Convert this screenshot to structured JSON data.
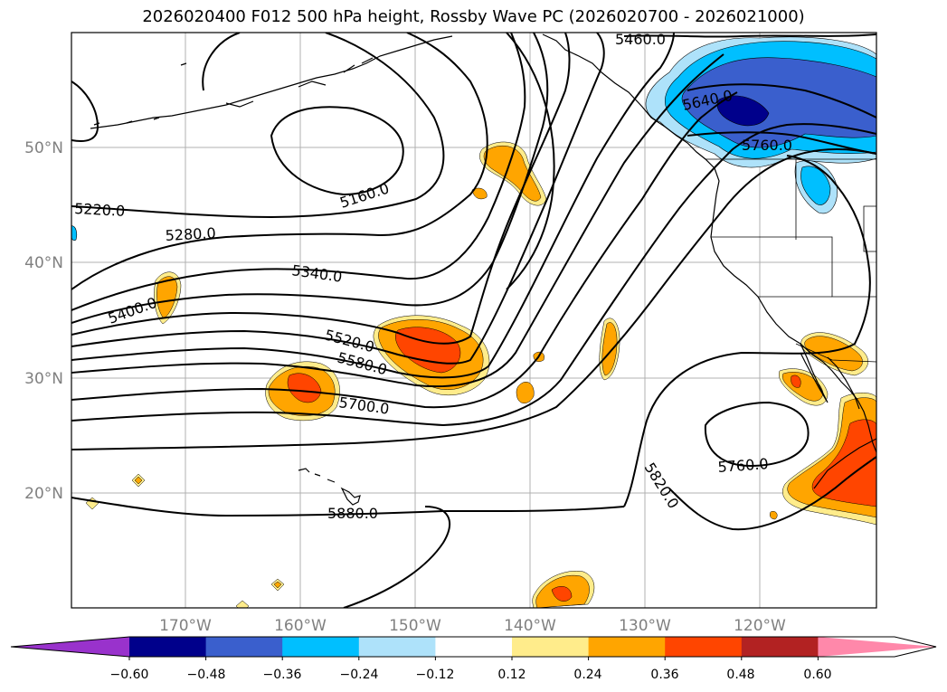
{
  "title": "2026020400 F012 500 hPa height, Rossby Wave PC (2026020700 - 2026021000)",
  "map": {
    "lat_labels": [
      "50°N",
      "40°N",
      "30°N",
      "20°N"
    ],
    "lon_labels": [
      "170°W",
      "160°W",
      "150°W",
      "140°W",
      "130°W",
      "120°W"
    ],
    "contour_labels": [
      "5460.0",
      "5640.0",
      "5760.0",
      "5160.0",
      "5220.0",
      "5280.0",
      "5340.0",
      "5400.0",
      "5520.0",
      "5580.0",
      "5700.0",
      "5820.0",
      "5760.0",
      "5880.0"
    ]
  },
  "colorbar": {
    "ticks": [
      "−0.60",
      "−0.48",
      "−0.36",
      "−0.24",
      "−0.12",
      "0.12",
      "0.24",
      "0.36",
      "0.48",
      "0.60"
    ],
    "colors": [
      "#9932cc",
      "#00008b",
      "#3a5fcd",
      "#00bfff",
      "#aee2fa",
      "#ffffff",
      "#ffec8b",
      "#ffa500",
      "#ff4500",
      "#b22222",
      "#ff88aa"
    ]
  }
}
